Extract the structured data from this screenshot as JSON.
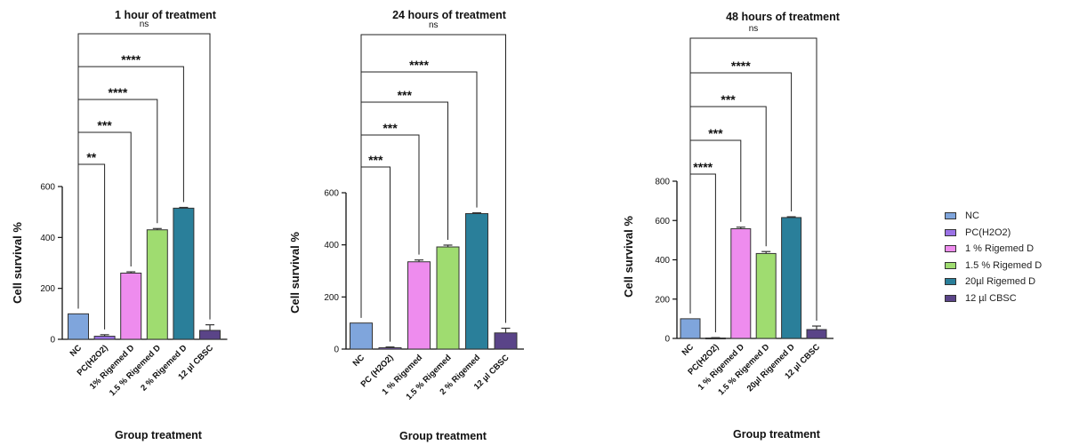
{
  "chart_data": [
    {
      "type": "bar",
      "title": "1 hour of treatment",
      "xlabel": "Group treatment",
      "ylabel": "Cell survival %",
      "ylim": [
        0,
        600
      ],
      "yticks": [
        0,
        200,
        400,
        600
      ],
      "categories": [
        "NC",
        "PC(H2O2)",
        "1% Rigemed D",
        "1.5 % Rigemed D",
        "2 % Rigemed D",
        "12 µl CBSC"
      ],
      "values": [
        100,
        12,
        260,
        430,
        515,
        35
      ],
      "errors": [
        0,
        6,
        5,
        5,
        3,
        22
      ],
      "comparisons": [
        {
          "from": "NC",
          "to": "PC(H2O2)",
          "label": "**"
        },
        {
          "from": "NC",
          "to": "1% Rigemed D",
          "label": "***"
        },
        {
          "from": "NC",
          "to": "1.5 % Rigemed D",
          "label": "****"
        },
        {
          "from": "NC",
          "to": "2 % Rigemed D",
          "label": "****"
        },
        {
          "from": "NC",
          "to": "12 µl CBSC",
          "label": "ns"
        }
      ]
    },
    {
      "type": "bar",
      "title": "24 hours of treatment",
      "xlabel": "Group treatment",
      "ylabel": "Cell survival %",
      "ylim": [
        0,
        600
      ],
      "yticks": [
        0,
        200,
        400,
        600
      ],
      "categories": [
        "NC",
        "PC (H2O2)",
        "1 % Rigemed",
        "1.5 % Rigemed",
        "2 % Rigemed",
        "12 µl CBSC"
      ],
      "values": [
        100,
        5,
        335,
        392,
        520,
        62
      ],
      "errors": [
        0,
        3,
        7,
        7,
        3,
        18
      ],
      "comparisons": [
        {
          "from": "NC",
          "to": "PC (H2O2)",
          "label": "***"
        },
        {
          "from": "NC",
          "to": "1 % Rigemed",
          "label": "***"
        },
        {
          "from": "NC",
          "to": "1.5 % Rigemed",
          "label": "***"
        },
        {
          "from": "NC",
          "to": "2 % Rigemed",
          "label": "****"
        },
        {
          "from": "NC",
          "to": "12 µl CBSC",
          "label": "ns"
        }
      ]
    },
    {
      "type": "bar",
      "title": "48 hours of treatment",
      "xlabel": "Group treatment",
      "ylabel": "Cell survival %",
      "ylim": [
        0,
        800
      ],
      "yticks": [
        0,
        200,
        400,
        600,
        800
      ],
      "categories": [
        "NC",
        "PC(H2O2)",
        "1 % Rigemed D",
        "1.5 % Rigemed D",
        "20µl Rigemed D",
        "12 µl CBSC"
      ],
      "values": [
        100,
        2,
        558,
        432,
        615,
        45
      ],
      "errors": [
        0,
        2,
        8,
        10,
        4,
        18
      ],
      "comparisons": [
        {
          "from": "NC",
          "to": "PC(H2O2)",
          "label": "****"
        },
        {
          "from": "NC",
          "to": "1 % Rigemed D",
          "label": "***"
        },
        {
          "from": "NC",
          "to": "1.5 % Rigemed D",
          "label": "***"
        },
        {
          "from": "NC",
          "to": "20µl Rigemed D",
          "label": "****"
        },
        {
          "from": "NC",
          "to": "12 µl CBSC",
          "label": "ns"
        }
      ]
    }
  ],
  "colors": [
    "#7fa5dc",
    "#9b72e6",
    "#ee8cee",
    "#9fdc70",
    "#2a7f9a",
    "#5a4488"
  ],
  "legend": {
    "placement": "right",
    "items": [
      {
        "label": "NC",
        "color": "#7fa5dc"
      },
      {
        "label": "PC(H2O2)",
        "color": "#9b72e6"
      },
      {
        "label": "1 % Rigemed D",
        "color": "#ee8cee"
      },
      {
        "label": "1.5 % Rigemed D",
        "color": "#9fdc70"
      },
      {
        "label": "20µl Rigemed D",
        "color": "#2a7f9a"
      },
      {
        "label": "12 µl CBSC",
        "color": "#5a4488"
      }
    ]
  }
}
